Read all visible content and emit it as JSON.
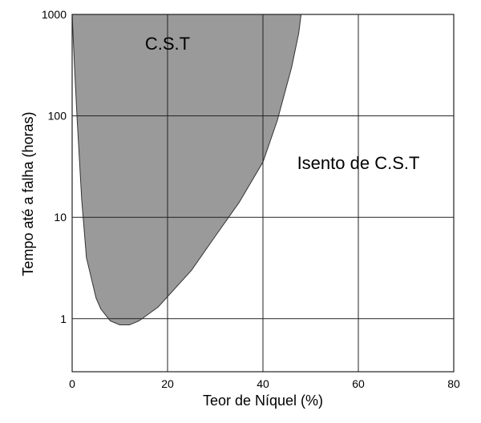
{
  "chart_data": {
    "type": "area",
    "xlabel": "Teor de Níquel (%)",
    "ylabel": "Tempo até a falha (horas)",
    "xlim": [
      0,
      80
    ],
    "ylim": [
      0.3,
      1000
    ],
    "yscale": "log",
    "x_ticks": [
      "0",
      "20",
      "40",
      "60",
      "80"
    ],
    "y_ticks": [
      "1",
      "10",
      "100",
      "1000"
    ],
    "grid": true,
    "series": [
      {
        "fill_color": "#9a9a9a",
        "boundary": [
          {
            "x": 0,
            "y": 1000
          },
          {
            "x": 0.5,
            "y": 300
          },
          {
            "x": 1,
            "y": 100
          },
          {
            "x": 2,
            "y": 15
          },
          {
            "x": 3,
            "y": 4
          },
          {
            "x": 5,
            "y": 1.6
          },
          {
            "x": 6,
            "y": 1.25
          },
          {
            "x": 8,
            "y": 0.95
          },
          {
            "x": 10,
            "y": 0.87
          },
          {
            "x": 12,
            "y": 0.87
          },
          {
            "x": 14,
            "y": 0.95
          },
          {
            "x": 18,
            "y": 1.3
          },
          {
            "x": 25,
            "y": 3
          },
          {
            "x": 30,
            "y": 6.5
          },
          {
            "x": 35,
            "y": 14
          },
          {
            "x": 40,
            "y": 35
          },
          {
            "x": 43,
            "y": 90
          },
          {
            "x": 46,
            "y": 300
          },
          {
            "x": 47.5,
            "y": 650
          },
          {
            "x": 48,
            "y": 1000
          }
        ]
      }
    ],
    "annotations": [
      {
        "text": "C.S.T",
        "x": 20,
        "y": 450
      },
      {
        "text": "Isento de C.S.T",
        "x": 60,
        "y": 30
      }
    ]
  }
}
